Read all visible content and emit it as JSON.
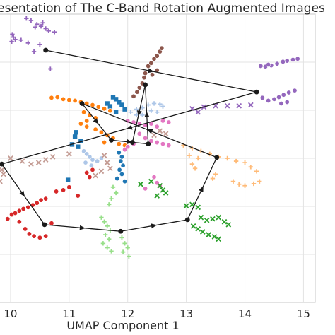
{
  "chart_data": {
    "type": "scatter",
    "title": "esentation of The C-Band Rotation Augmented Images",
    "xlabel": "UMAP Component 1",
    "ylabel": "",
    "x_ticks": [
      10,
      11,
      12,
      13,
      14,
      15
    ],
    "xlim": [
      9.82,
      15.2
    ],
    "ylim": [
      0,
      10
    ],
    "grid": true,
    "style": "whitegrid",
    "clusters": [
      {
        "color": "#9467bd",
        "marker": "plus",
        "points": [
          [
            10.03,
            9.3
          ],
          [
            10.05,
            9.2
          ],
          [
            10.02,
            9.05
          ],
          [
            10.08,
            9.12
          ],
          [
            10.27,
            9.85
          ],
          [
            10.35,
            9.78
          ],
          [
            10.45,
            9.65
          ],
          [
            10.52,
            9.58
          ],
          [
            10.6,
            9.5
          ],
          [
            10.42,
            9.55
          ],
          [
            10.55,
            9.7
          ],
          [
            10.18,
            9.1
          ],
          [
            10.3,
            9.0
          ],
          [
            10.4,
            8.7
          ],
          [
            10.5,
            8.95
          ],
          [
            10.65,
            9.42
          ],
          [
            10.75,
            9.38
          ],
          [
            10.68,
            8.1
          ]
        ]
      },
      {
        "color": "#9467bd",
        "marker": "circle",
        "points": [
          [
            14.27,
            8.2
          ],
          [
            14.35,
            8.18
          ],
          [
            14.45,
            8.22
          ],
          [
            14.55,
            8.28
          ],
          [
            14.65,
            8.35
          ],
          [
            14.72,
            8.38
          ],
          [
            14.82,
            8.42
          ],
          [
            14.9,
            8.45
          ],
          [
            14.4,
            8.25
          ],
          [
            14.3,
            7.1
          ],
          [
            14.4,
            7.0
          ],
          [
            14.5,
            7.05
          ],
          [
            14.58,
            7.12
          ],
          [
            14.66,
            7.2
          ],
          [
            14.75,
            7.28
          ],
          [
            14.85,
            7.35
          ],
          [
            14.62,
            6.9
          ],
          [
            14.72,
            6.95
          ]
        ]
      },
      {
        "color": "#9467bd",
        "marker": "x",
        "points": [
          [
            13.1,
            6.72
          ],
          [
            13.3,
            6.78
          ],
          [
            13.5,
            6.82
          ],
          [
            13.7,
            6.82
          ],
          [
            13.9,
            6.82
          ],
          [
            14.1,
            6.85
          ],
          [
            13.2,
            6.6
          ]
        ]
      },
      {
        "color": "#8c564b",
        "marker": "circle",
        "points": [
          [
            12.35,
            8.2
          ],
          [
            12.4,
            8.3
          ],
          [
            12.45,
            8.45
          ],
          [
            12.5,
            8.55
          ],
          [
            12.55,
            8.7
          ],
          [
            12.58,
            8.82
          ],
          [
            12.3,
            7.95
          ],
          [
            12.28,
            7.8
          ],
          [
            12.25,
            7.6
          ],
          [
            12.2,
            7.45
          ],
          [
            12.16,
            7.3
          ],
          [
            12.1,
            7.15
          ],
          [
            12.42,
            7.9
          ],
          [
            12.5,
            8.05
          ]
        ]
      },
      {
        "color": "#1f77b4",
        "marker": "square",
        "points": [
          [
            11.75,
            7.12
          ],
          [
            11.8,
            7.05
          ],
          [
            11.85,
            6.95
          ],
          [
            11.9,
            6.85
          ],
          [
            11.7,
            6.8
          ],
          [
            11.65,
            6.9
          ],
          [
            11.95,
            6.7
          ],
          [
            11.8,
            6.6
          ],
          [
            11.12,
            5.9
          ],
          [
            11.1,
            5.75
          ],
          [
            11.2,
            5.6
          ],
          [
            11.05,
            5.48
          ],
          [
            11.15,
            5.4
          ],
          [
            10.98,
            4.25
          ]
        ]
      },
      {
        "color": "#1f77b4",
        "marker": "circle",
        "points": [
          [
            11.85,
            5.2
          ],
          [
            11.9,
            5.05
          ],
          [
            11.88,
            4.9
          ],
          [
            11.92,
            4.75
          ],
          [
            11.86,
            4.6
          ],
          [
            11.9,
            4.45
          ],
          [
            11.82,
            4.3
          ],
          [
            11.95,
            4.2
          ]
        ]
      },
      {
        "color": "#ff7f0e",
        "marker": "circle",
        "points": [
          [
            10.7,
            7.1
          ],
          [
            10.8,
            7.12
          ],
          [
            10.9,
            7.05
          ],
          [
            11.0,
            7.02
          ],
          [
            11.1,
            7.0
          ],
          [
            11.2,
            6.95
          ],
          [
            11.3,
            6.9
          ],
          [
            11.4,
            6.85
          ],
          [
            11.5,
            6.78
          ],
          [
            11.6,
            6.72
          ],
          [
            11.7,
            6.65
          ],
          [
            11.25,
            6.6
          ],
          [
            11.35,
            6.5
          ],
          [
            11.45,
            6.4
          ],
          [
            11.3,
            6.3
          ],
          [
            11.2,
            6.2
          ],
          [
            11.3,
            6.1
          ],
          [
            11.45,
            6.0
          ],
          [
            11.55,
            5.9
          ],
          [
            11.65,
            5.8
          ],
          [
            11.75,
            5.7
          ],
          [
            11.6,
            5.55
          ],
          [
            11.85,
            5.5
          ],
          [
            11.95,
            5.45
          ]
        ]
      },
      {
        "color": "#ffbb78",
        "marker": "plus",
        "points": [
          [
            12.95,
            5.45
          ],
          [
            13.1,
            5.35
          ],
          [
            13.25,
            5.25
          ],
          [
            13.4,
            5.15
          ],
          [
            13.55,
            5.05
          ],
          [
            13.7,
            5.0
          ],
          [
            13.85,
            4.9
          ],
          [
            14.0,
            4.85
          ],
          [
            14.1,
            4.7
          ],
          [
            14.2,
            4.55
          ],
          [
            13.05,
            5.1
          ],
          [
            13.2,
            5.0
          ],
          [
            13.1,
            4.8
          ],
          [
            13.15,
            4.65
          ],
          [
            13.8,
            4.2
          ],
          [
            13.9,
            4.1
          ],
          [
            14.0,
            4.05
          ],
          [
            14.15,
            4.12
          ],
          [
            14.25,
            4.2
          ],
          [
            13.45,
            4.3
          ],
          [
            13.5,
            4.45
          ]
        ]
      },
      {
        "color": "#e377c2",
        "marker": "circle",
        "points": [
          [
            12.0,
            6.3
          ],
          [
            12.1,
            6.25
          ],
          [
            12.2,
            6.2
          ],
          [
            12.3,
            6.15
          ],
          [
            12.4,
            6.2
          ],
          [
            12.5,
            6.1
          ],
          [
            12.6,
            6.3
          ],
          [
            12.7,
            6.25
          ],
          [
            12.2,
            5.85
          ],
          [
            12.3,
            5.7
          ],
          [
            12.4,
            5.6
          ],
          [
            12.5,
            5.55
          ],
          [
            12.1,
            5.5
          ],
          [
            12.0,
            5.4
          ],
          [
            11.95,
            5.3
          ],
          [
            12.6,
            5.5
          ],
          [
            12.7,
            5.45
          ],
          [
            12.45,
            4.35
          ],
          [
            12.5,
            4.15
          ],
          [
            12.55,
            4.05
          ],
          [
            12.3,
            3.95
          ]
        ]
      },
      {
        "color": "#aec7e8",
        "marker": "plus",
        "points": [
          [
            12.05,
            6.6
          ],
          [
            12.15,
            6.7
          ],
          [
            12.25,
            6.75
          ],
          [
            12.35,
            6.85
          ],
          [
            12.45,
            6.9
          ],
          [
            12.55,
            6.88
          ],
          [
            12.6,
            6.8
          ],
          [
            12.4,
            6.65
          ],
          [
            12.5,
            6.6
          ],
          [
            12.15,
            6.5
          ],
          [
            12.25,
            6.5
          ]
        ]
      },
      {
        "color": "#aec7e8",
        "marker": "circle",
        "points": [
          [
            11.25,
            5.25
          ],
          [
            11.3,
            5.15
          ],
          [
            11.35,
            5.05
          ],
          [
            11.4,
            4.95
          ],
          [
            11.28,
            4.85
          ],
          [
            11.38,
            4.75
          ],
          [
            11.48,
            4.9
          ],
          [
            11.55,
            5.0
          ]
        ]
      },
      {
        "color": "#c49c94",
        "marker": "x",
        "points": [
          [
            10.0,
            5.0
          ],
          [
            10.2,
            4.9
          ],
          [
            10.35,
            4.8
          ],
          [
            10.48,
            4.85
          ],
          [
            10.6,
            4.95
          ],
          [
            10.72,
            5.05
          ],
          [
            11.0,
            5.15
          ],
          [
            11.6,
            5.1
          ],
          [
            11.65,
            4.85
          ],
          [
            11.7,
            4.65
          ],
          [
            11.55,
            4.55
          ],
          [
            11.45,
            4.4
          ],
          [
            12.45,
            5.8
          ],
          [
            12.55,
            5.95
          ],
          [
            12.65,
            5.85
          ],
          [
            9.85,
            4.6
          ],
          [
            9.82,
            4.2
          ],
          [
            9.88,
            4.45
          ]
        ]
      },
      {
        "color": "#d62728",
        "marker": "circle",
        "points": [
          [
            10.02,
            3.05
          ],
          [
            10.08,
            3.1
          ],
          [
            10.15,
            3.18
          ],
          [
            10.22,
            3.25
          ],
          [
            10.3,
            3.3
          ],
          [
            10.38,
            3.38
          ],
          [
            10.45,
            3.45
          ],
          [
            10.52,
            3.55
          ],
          [
            10.6,
            3.6
          ],
          [
            9.95,
            2.9
          ],
          [
            10.15,
            2.8
          ],
          [
            10.25,
            2.55
          ],
          [
            10.32,
            2.38
          ],
          [
            10.4,
            2.3
          ],
          [
            10.5,
            2.25
          ],
          [
            10.6,
            2.3
          ],
          [
            10.7,
            2.75
          ],
          [
            10.78,
            3.85
          ],
          [
            10.9,
            3.9
          ],
          [
            11.0,
            4.0
          ],
          [
            11.3,
            4.5
          ],
          [
            11.4,
            4.6
          ],
          [
            11.35,
            4.35
          ],
          [
            11.15,
            3.7
          ]
        ]
      },
      {
        "color": "#2ca02c",
        "marker": "x",
        "points": [
          [
            13.0,
            3.35
          ],
          [
            13.1,
            3.4
          ],
          [
            13.2,
            3.3
          ],
          [
            13.25,
            2.95
          ],
          [
            13.35,
            2.85
          ],
          [
            13.45,
            2.9
          ],
          [
            13.55,
            2.95
          ],
          [
            13.65,
            2.8
          ],
          [
            13.72,
            2.7
          ],
          [
            13.12,
            2.65
          ],
          [
            13.2,
            2.55
          ],
          [
            13.28,
            2.45
          ],
          [
            13.38,
            2.35
          ],
          [
            13.48,
            2.28
          ],
          [
            13.55,
            2.2
          ],
          [
            12.55,
            4.05
          ],
          [
            12.6,
            3.9
          ],
          [
            12.65,
            3.8
          ],
          [
            12.5,
            3.7
          ],
          [
            12.4,
            4.2
          ],
          [
            12.22,
            4.1
          ]
        ]
      },
      {
        "color": "#98df8a",
        "marker": "plus",
        "points": [
          [
            11.55,
            2.95
          ],
          [
            11.6,
            2.8
          ],
          [
            11.65,
            2.65
          ],
          [
            11.7,
            2.5
          ],
          [
            11.62,
            2.35
          ],
          [
            11.68,
            2.2
          ],
          [
            11.58,
            2.05
          ],
          [
            11.65,
            1.9
          ],
          [
            11.72,
            1.78
          ],
          [
            11.9,
            2.25
          ],
          [
            11.95,
            2.05
          ],
          [
            12.0,
            1.9
          ],
          [
            11.92,
            1.75
          ],
          [
            12.02,
            1.6
          ],
          [
            11.68,
            3.4
          ],
          [
            11.72,
            3.6
          ],
          [
            11.8,
            3.8
          ],
          [
            11.75,
            4.0
          ]
        ]
      }
    ],
    "trajectory": {
      "color": "#1a1a1a",
      "points": [
        [
          10.6,
          8.75
        ],
        [
          14.2,
          7.3
        ],
        [
          9.85,
          4.8
        ],
        [
          10.58,
          2.7
        ],
        [
          11.88,
          2.47
        ],
        [
          13.02,
          2.87
        ],
        [
          13.52,
          5.03
        ],
        [
          11.22,
          6.9
        ],
        [
          11.72,
          5.63
        ],
        [
          12.35,
          5.5
        ],
        [
          12.3,
          7.55
        ],
        [
          12.08,
          5.55
        ]
      ],
      "arrows": [
        [
          0,
          1
        ],
        [
          1,
          2
        ],
        [
          2,
          3
        ],
        [
          3,
          4
        ],
        [
          4,
          5
        ],
        [
          5,
          6
        ],
        [
          6,
          7
        ],
        [
          7,
          8
        ],
        [
          8,
          9
        ],
        [
          9,
          10
        ],
        [
          10,
          11
        ]
      ]
    }
  }
}
